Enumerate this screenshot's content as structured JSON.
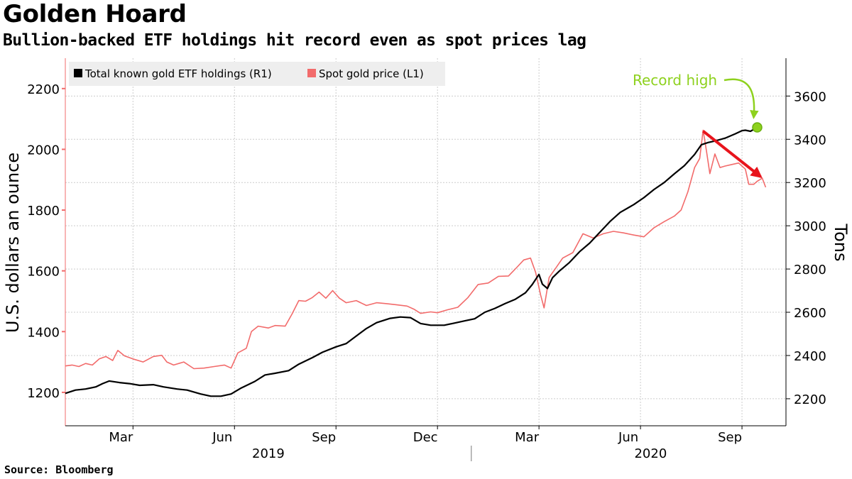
{
  "title": "Golden Hoard",
  "subtitle": "Bullion-backed ETF holdings hit record even as spot prices lag",
  "source": "Source: Bloomberg",
  "colors": {
    "etf": "#000000",
    "spot": "#f26b6b",
    "record": "#8ed11e",
    "arrow": "#e8141c",
    "grid": "#cccccc"
  },
  "chart_data": {
    "type": "line",
    "title": "Golden Hoard",
    "subtitle": "Bullion-backed ETF holdings hit record even as spot prices lag",
    "ylabel_left": "U.S. dollars an ounce",
    "ylabel_right": "Tons",
    "ylim_left": [
      1090,
      2300
    ],
    "ylim_right": [
      2075,
      3775
    ],
    "yticks_left": [
      1200,
      1400,
      1600,
      1800,
      2000,
      2200
    ],
    "yticks_right": [
      2200,
      2400,
      2600,
      2800,
      3000,
      3200,
      3400,
      3600
    ],
    "x_range": [
      0,
      21.3
    ],
    "x_unit": "months since start of Jan 2019",
    "xticks": [
      {
        "x": 2,
        "label": "Mar"
      },
      {
        "x": 5,
        "label": "Jun"
      },
      {
        "x": 8,
        "label": "Sep"
      },
      {
        "x": 11,
        "label": "Dec"
      },
      {
        "x": 14,
        "label": "Mar"
      },
      {
        "x": 17,
        "label": "Jun"
      },
      {
        "x": 20,
        "label": "Sep"
      }
    ],
    "years": [
      {
        "label": "2019",
        "x": 6
      },
      {
        "label": "2020",
        "x": 17.3
      }
    ],
    "year_divider_x": 12,
    "legend": [
      "Total known gold ETF holdings (R1)",
      "Spot gold price (L1)"
    ],
    "series": [
      {
        "name": "Total known gold ETF holdings (R1)",
        "axis": "right",
        "points": [
          [
            0,
            2225
          ],
          [
            0.3,
            2240
          ],
          [
            0.6,
            2245
          ],
          [
            0.9,
            2255
          ],
          [
            1.1,
            2270
          ],
          [
            1.3,
            2282
          ],
          [
            1.6,
            2275
          ],
          [
            1.9,
            2270
          ],
          [
            2.2,
            2262
          ],
          [
            2.6,
            2265
          ],
          [
            2.9,
            2255
          ],
          [
            3.3,
            2245
          ],
          [
            3.6,
            2240
          ],
          [
            4.0,
            2222
          ],
          [
            4.3,
            2212
          ],
          [
            4.6,
            2212
          ],
          [
            4.9,
            2222
          ],
          [
            5.2,
            2250
          ],
          [
            5.6,
            2280
          ],
          [
            5.9,
            2310
          ],
          [
            6.2,
            2318
          ],
          [
            6.6,
            2330
          ],
          [
            6.9,
            2360
          ],
          [
            7.3,
            2390
          ],
          [
            7.6,
            2415
          ],
          [
            8.0,
            2440
          ],
          [
            8.3,
            2455
          ],
          [
            8.6,
            2490
          ],
          [
            8.9,
            2525
          ],
          [
            9.2,
            2552
          ],
          [
            9.6,
            2572
          ],
          [
            9.9,
            2578
          ],
          [
            10.2,
            2575
          ],
          [
            10.5,
            2548
          ],
          [
            10.8,
            2540
          ],
          [
            11.2,
            2540
          ],
          [
            11.5,
            2550
          ],
          [
            11.8,
            2560
          ],
          [
            12.1,
            2570
          ],
          [
            12.4,
            2600
          ],
          [
            12.7,
            2618
          ],
          [
            13.0,
            2640
          ],
          [
            13.3,
            2660
          ],
          [
            13.6,
            2690
          ],
          [
            13.8,
            2728
          ],
          [
            14.0,
            2775
          ],
          [
            14.1,
            2730
          ],
          [
            14.25,
            2710
          ],
          [
            14.4,
            2760
          ],
          [
            14.6,
            2790
          ],
          [
            14.9,
            2830
          ],
          [
            15.2,
            2880
          ],
          [
            15.5,
            2920
          ],
          [
            15.8,
            2970
          ],
          [
            16.1,
            3020
          ],
          [
            16.4,
            3062
          ],
          [
            16.8,
            3098
          ],
          [
            17.1,
            3130
          ],
          [
            17.4,
            3168
          ],
          [
            17.7,
            3200
          ],
          [
            18.0,
            3240
          ],
          [
            18.3,
            3278
          ],
          [
            18.6,
            3330
          ],
          [
            18.8,
            3375
          ],
          [
            19.0,
            3385
          ],
          [
            19.2,
            3392
          ],
          [
            19.5,
            3405
          ],
          [
            19.8,
            3425
          ],
          [
            20.0,
            3440
          ],
          [
            20.1,
            3442
          ],
          [
            20.25,
            3437
          ],
          [
            20.45,
            3455
          ]
        ]
      },
      {
        "name": "Spot gold price (L1)",
        "axis": "left",
        "points": [
          [
            0,
            1287
          ],
          [
            0.2,
            1290
          ],
          [
            0.4,
            1285
          ],
          [
            0.6,
            1295
          ],
          [
            0.8,
            1290
          ],
          [
            1.0,
            1310
          ],
          [
            1.2,
            1318
          ],
          [
            1.4,
            1305
          ],
          [
            1.55,
            1338
          ],
          [
            1.75,
            1320
          ],
          [
            2.0,
            1310
          ],
          [
            2.3,
            1300
          ],
          [
            2.6,
            1318
          ],
          [
            2.85,
            1322
          ],
          [
            3.0,
            1300
          ],
          [
            3.2,
            1290
          ],
          [
            3.5,
            1300
          ],
          [
            3.8,
            1278
          ],
          [
            4.1,
            1280
          ],
          [
            4.4,
            1285
          ],
          [
            4.7,
            1290
          ],
          [
            4.9,
            1280
          ],
          [
            5.1,
            1330
          ],
          [
            5.35,
            1345
          ],
          [
            5.5,
            1400
          ],
          [
            5.7,
            1418
          ],
          [
            6.0,
            1412
          ],
          [
            6.2,
            1420
          ],
          [
            6.5,
            1418
          ],
          [
            6.7,
            1458
          ],
          [
            6.9,
            1502
          ],
          [
            7.1,
            1500
          ],
          [
            7.3,
            1512
          ],
          [
            7.5,
            1530
          ],
          [
            7.7,
            1510
          ],
          [
            7.9,
            1535
          ],
          [
            8.1,
            1510
          ],
          [
            8.3,
            1495
          ],
          [
            8.6,
            1502
          ],
          [
            8.9,
            1486
          ],
          [
            9.2,
            1495
          ],
          [
            9.5,
            1492
          ],
          [
            9.8,
            1488
          ],
          [
            10.1,
            1484
          ],
          [
            10.3,
            1474
          ],
          [
            10.5,
            1460
          ],
          [
            10.8,
            1465
          ],
          [
            11.0,
            1462
          ],
          [
            11.3,
            1472
          ],
          [
            11.6,
            1480
          ],
          [
            11.9,
            1512
          ],
          [
            12.2,
            1555
          ],
          [
            12.5,
            1560
          ],
          [
            12.8,
            1582
          ],
          [
            13.1,
            1583
          ],
          [
            13.35,
            1612
          ],
          [
            13.55,
            1636
          ],
          [
            13.75,
            1642
          ],
          [
            13.9,
            1595
          ],
          [
            14.05,
            1520
          ],
          [
            14.15,
            1478
          ],
          [
            14.3,
            1578
          ],
          [
            14.5,
            1610
          ],
          [
            14.7,
            1642
          ],
          [
            15.0,
            1660
          ],
          [
            15.3,
            1722
          ],
          [
            15.6,
            1708
          ],
          [
            15.9,
            1722
          ],
          [
            16.2,
            1730
          ],
          [
            16.5,
            1725
          ],
          [
            16.8,
            1718
          ],
          [
            17.1,
            1712
          ],
          [
            17.4,
            1742
          ],
          [
            17.7,
            1762
          ],
          [
            18.0,
            1780
          ],
          [
            18.2,
            1800
          ],
          [
            18.4,
            1860
          ],
          [
            18.6,
            1940
          ],
          [
            18.75,
            1970
          ],
          [
            18.85,
            2063
          ],
          [
            18.95,
            1995
          ],
          [
            19.05,
            1920
          ],
          [
            19.2,
            1985
          ],
          [
            19.35,
            1940
          ],
          [
            19.5,
            1945
          ],
          [
            19.7,
            1950
          ],
          [
            19.9,
            1955
          ],
          [
            20.1,
            1935
          ],
          [
            20.2,
            1885
          ],
          [
            20.35,
            1885
          ],
          [
            20.45,
            1895
          ],
          [
            20.6,
            1905
          ],
          [
            20.7,
            1875
          ]
        ]
      }
    ],
    "annotations": [
      {
        "type": "marker",
        "label": "Record high",
        "series": "Total known gold ETF holdings (R1)",
        "x": 20.45,
        "value": 3455
      },
      {
        "type": "arrow",
        "from": {
          "x": 18.85,
          "value_left": 2060
        },
        "to": {
          "x": 20.55,
          "value_left": 1910
        }
      }
    ]
  }
}
